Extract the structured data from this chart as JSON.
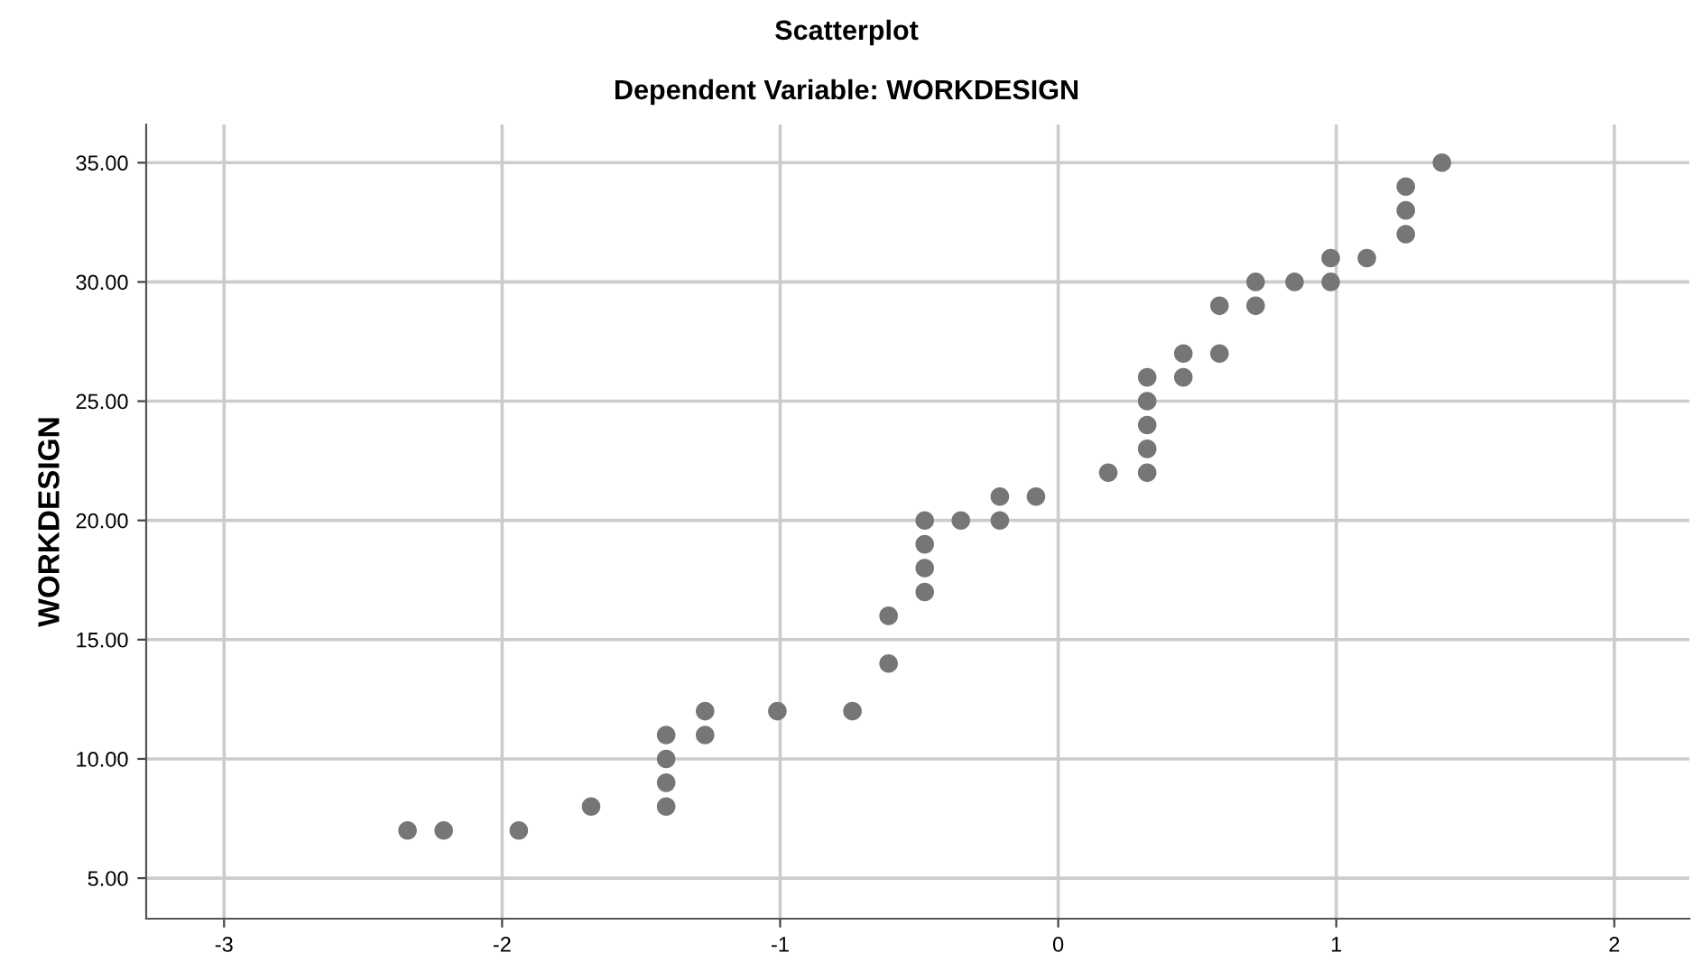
{
  "chart_data": {
    "type": "scatter",
    "title": "Scatterplot",
    "subtitle": "Dependent Variable: WORKDESIGN",
    "ylabel": "WORKDESIGN",
    "x": [
      -2.34,
      -2.21,
      -1.94,
      -1.68,
      -1.41,
      -1.41,
      -1.41,
      -1.41,
      -1.27,
      -1.27,
      -1.01,
      -0.74,
      -0.61,
      -0.61,
      -0.48,
      -0.48,
      -0.48,
      -0.48,
      -0.35,
      -0.21,
      -0.21,
      -0.08,
      0.18,
      0.32,
      0.32,
      0.32,
      0.32,
      0.32,
      0.45,
      0.45,
      0.58,
      0.58,
      0.71,
      0.71,
      0.85,
      0.98,
      0.98,
      1.11,
      1.25,
      1.25,
      1.25,
      1.38
    ],
    "values": [
      7,
      7,
      7,
      8,
      8,
      9,
      10,
      11,
      11,
      12,
      12,
      12,
      14,
      16,
      17,
      18,
      19,
      20,
      20,
      20,
      21,
      21,
      22,
      22,
      23,
      24,
      25,
      26,
      26,
      27,
      27,
      29,
      29,
      30,
      30,
      30,
      31,
      31,
      32,
      33,
      34,
      35
    ],
    "color": "#767676",
    "marker": "circle",
    "grid": true,
    "legend": false,
    "xlim": [
      -3.28,
      2.27
    ],
    "ylim": [
      3.3,
      36.6
    ],
    "xticks": [
      -3,
      -2,
      -1,
      0,
      1,
      2
    ],
    "yticks": [
      {
        "value": 5,
        "label": "5.00"
      },
      {
        "value": 10,
        "label": "10.00"
      },
      {
        "value": 15,
        "label": "15.00"
      },
      {
        "value": 20,
        "label": "20.00"
      },
      {
        "value": 25,
        "label": "25.00"
      },
      {
        "value": 30,
        "label": "30.00"
      },
      {
        "value": 35,
        "label": "35.00"
      }
    ]
  }
}
